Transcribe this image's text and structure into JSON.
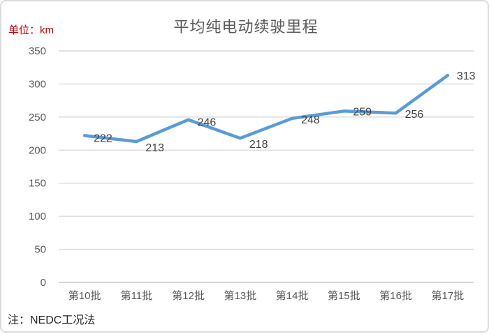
{
  "chart": {
    "title": "平均纯电动续驶里程",
    "unit_label": "单位：km",
    "note": "注：NEDC工况法"
  },
  "chart_data": {
    "type": "line",
    "title": "平均纯电动续驶里程",
    "categories": [
      "第10批",
      "第11批",
      "第12批",
      "第13批",
      "第14批",
      "第15批",
      "第16批",
      "第17批"
    ],
    "series": [
      {
        "name": "平均纯电动续驶里程",
        "values": [
          222,
          213,
          246,
          218,
          248,
          259,
          256,
          313
        ]
      }
    ],
    "xlabel": "",
    "ylabel": "单位：km",
    "ylim": [
      0,
      350
    ],
    "yticks": [
      0,
      50,
      100,
      150,
      200,
      250,
      300,
      350
    ],
    "grid": "horizontal",
    "legend": "none",
    "data_labels": true
  },
  "colors": {
    "line": "#5B9BD5",
    "gridline": "#D9D9D9",
    "axis_line": "#C9C9C9",
    "axis_text": "#595959",
    "data_label_text": "#404040",
    "title_text": "#595959",
    "unit_text": "#C00000",
    "note_text": "#262626",
    "border": "#DCDCDC"
  }
}
